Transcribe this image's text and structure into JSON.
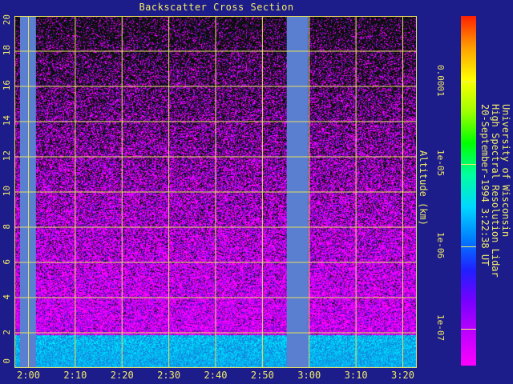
{
  "chart_data": {
    "type": "heatmap",
    "title": "Backscatter Cross Section",
    "ylabel": "Altitude (km)",
    "xlabel": "",
    "ylim": [
      0,
      20
    ],
    "y_ticks": [
      "0",
      "2",
      "4",
      "6",
      "8",
      "10",
      "12",
      "14",
      "16",
      "18",
      "20"
    ],
    "xlim_minutes": [
      117,
      203
    ],
    "x_ticks": [
      {
        "label": "2:00",
        "minutes": 120
      },
      {
        "label": "2:10",
        "minutes": 130
      },
      {
        "label": "2:20",
        "minutes": 140
      },
      {
        "label": "2:30",
        "minutes": 150
      },
      {
        "label": "2:40",
        "minutes": 160
      },
      {
        "label": "2:50",
        "minutes": 170
      },
      {
        "label": "3:00",
        "minutes": 180
      },
      {
        "label": "3:10",
        "minutes": 190
      },
      {
        "label": "3:20",
        "minutes": 200
      }
    ],
    "data_gaps_minutes": [
      [
        118.2,
        121.6
      ],
      [
        175.2,
        179.8
      ]
    ],
    "boundary_layer_top_km": 1.9,
    "colorbar": {
      "ticks": [
        {
          "label": "1e-07",
          "value": 1e-07
        },
        {
          "label": "1e-06",
          "value": 1e-06
        },
        {
          "label": "1e-05",
          "value": 1e-05
        },
        {
          "label": "0.0001",
          "value": 0.0001
        }
      ],
      "log_range": [
        -7.45,
        -3.2
      ],
      "colors": [
        "#ff00ff",
        "#c000ff",
        "#7a00ff",
        "#2020ff",
        "#0080ff",
        "#00d8ff",
        "#00ffa0",
        "#00ff00",
        "#a0ff00",
        "#ffff00",
        "#ffa000",
        "#ff2000"
      ]
    },
    "grid": true,
    "grid_color": "#e8e060"
  },
  "instrument": {
    "lines": [
      "University of Wisconsin",
      "High Spectral Resolution Lidar",
      "20-September-1994  3:22:38 UT"
    ]
  }
}
